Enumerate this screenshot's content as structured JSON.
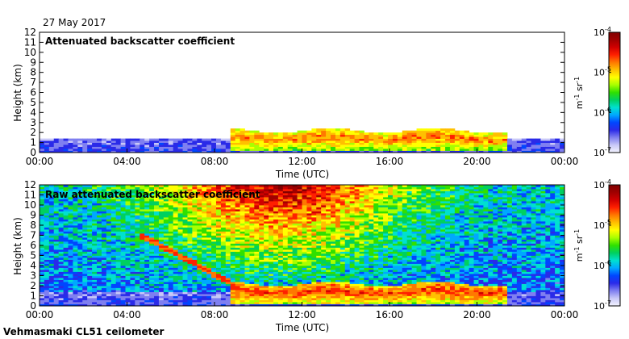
{
  "date_label": "27 May 2017",
  "instrument_label": "Vehmasmaki CL51 ceilometer",
  "colorbar_unit": "m-1 sr-1",
  "colormap": [
    "#f4f4ff",
    "#c8c8f8",
    "#7f7ff0",
    "#2a2ae8",
    "#0046ff",
    "#00a8ff",
    "#00e0d0",
    "#00d060",
    "#30e000",
    "#a8ff00",
    "#ffff00",
    "#ffc000",
    "#ff7800",
    "#ff2000",
    "#d00000",
    "#a00000",
    "#800000"
  ],
  "chart_data": [
    {
      "type": "heatmap",
      "title": "Attenuated backscatter coefficient",
      "xlabel": "Time (UTC)",
      "ylabel": "Height (km)",
      "x_ticks": [
        "00:00",
        "04:00",
        "08:00",
        "12:00",
        "16:00",
        "20:00",
        "00:00"
      ],
      "y_ticks": [
        "0",
        "1",
        "2",
        "3",
        "4",
        "5",
        "6",
        "7",
        "8",
        "9",
        "10",
        "11",
        "12"
      ],
      "ylim": [
        0,
        12
      ],
      "colorbar": {
        "scale": "log",
        "min": "10-7",
        "max": "10-4",
        "ticks": [
          "10-4",
          "10-5",
          "10-6",
          "10-7"
        ],
        "unit": "m-1 sr-1"
      },
      "features": [
        {
          "name": "surface aerosol",
          "time_start_h": 0,
          "time_end_h": 24,
          "top_km": 1.4,
          "level": 0.18
        },
        {
          "name": "cloud/aerosol layer",
          "time_start_h": 8.8,
          "time_end_h": 21.3,
          "base_km": 0.3,
          "top_km": 2.2,
          "level": 0.75
        }
      ]
    },
    {
      "type": "heatmap",
      "title": "Raw attenuated backscatter coefficient",
      "xlabel": "Time (UTC)",
      "ylabel": "Height (km)",
      "x_ticks": [
        "00:00",
        "04:00",
        "08:00",
        "12:00",
        "16:00",
        "20:00",
        "00:00"
      ],
      "y_ticks": [
        "0",
        "1",
        "2",
        "3",
        "4",
        "5",
        "6",
        "7",
        "8",
        "9",
        "10",
        "11",
        "12"
      ],
      "ylim": [
        0,
        12
      ],
      "colorbar": {
        "scale": "log",
        "min": "10-7",
        "max": "10-4",
        "ticks": [
          "10-4",
          "10-5",
          "10-6",
          "10-7"
        ],
        "unit": "m-1 sr-1"
      },
      "features": [
        {
          "name": "background noise",
          "time_start_h": 0,
          "time_end_h": 24,
          "top_km": 12,
          "level": 0.55
        },
        {
          "name": "descending residual layer",
          "time_start_h": 4.5,
          "time_end_h": 9.0,
          "start_km": 7.2,
          "end_km": 2.0
        },
        {
          "name": "cloud/aerosol layer",
          "time_start_h": 8.8,
          "time_end_h": 21.3,
          "base_km": 0.3,
          "top_km": 2.2,
          "level": 0.8
        }
      ]
    }
  ]
}
